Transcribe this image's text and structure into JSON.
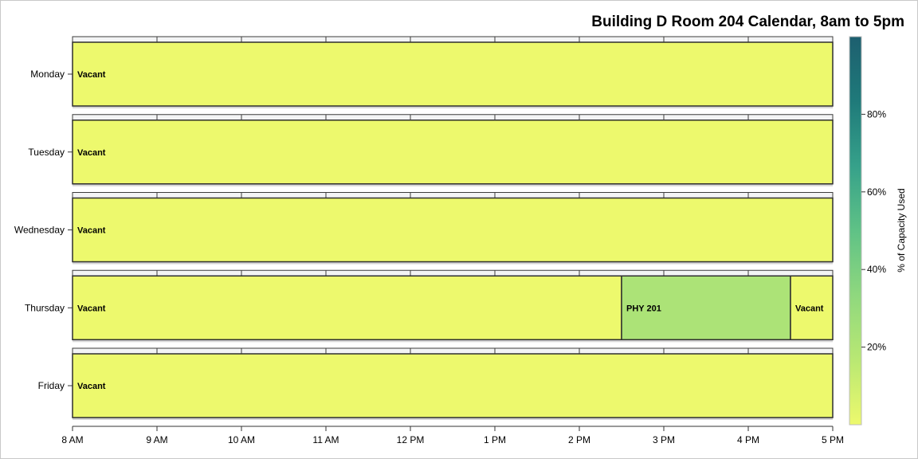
{
  "chart_data": {
    "type": "gantt",
    "title": "Building D Room 204 Calendar, 8am to 5pm",
    "x_unit": "hour of day",
    "xlim": [
      8,
      17
    ],
    "x_ticks": [
      {
        "value": 8,
        "label": "8 AM"
      },
      {
        "value": 9,
        "label": "9 AM"
      },
      {
        "value": 10,
        "label": "10 AM"
      },
      {
        "value": 11,
        "label": "11 AM"
      },
      {
        "value": 12,
        "label": "12 PM"
      },
      {
        "value": 13,
        "label": "1 PM"
      },
      {
        "value": 14,
        "label": "2 PM"
      },
      {
        "value": 15,
        "label": "3 PM"
      },
      {
        "value": 16,
        "label": "4 PM"
      },
      {
        "value": 17,
        "label": "5 PM"
      }
    ],
    "days": [
      "Monday",
      "Tuesday",
      "Wednesday",
      "Thursday",
      "Friday"
    ],
    "blocks": [
      {
        "day": "Monday",
        "start": 8,
        "end": 17,
        "label": "Vacant",
        "capacity_pct": 0
      },
      {
        "day": "Tuesday",
        "start": 8,
        "end": 17,
        "label": "Vacant",
        "capacity_pct": 0
      },
      {
        "day": "Wednesday",
        "start": 8,
        "end": 17,
        "label": "Vacant",
        "capacity_pct": 0
      },
      {
        "day": "Thursday",
        "start": 8,
        "end": 14.5,
        "label": "Vacant",
        "capacity_pct": 0
      },
      {
        "day": "Thursday",
        "start": 14.5,
        "end": 16.5,
        "label": "PHY 201",
        "capacity_pct": 22
      },
      {
        "day": "Thursday",
        "start": 16.5,
        "end": 17,
        "label": "Vacant",
        "capacity_pct": 0
      },
      {
        "day": "Friday",
        "start": 8,
        "end": 17,
        "label": "Vacant",
        "capacity_pct": 0
      }
    ],
    "colorbar": {
      "title": "% of Capacity Used",
      "range": [
        0,
        100
      ],
      "ticks": [
        {
          "value": 20,
          "label": "20%"
        },
        {
          "value": 40,
          "label": "40%"
        },
        {
          "value": 60,
          "label": "60%"
        },
        {
          "value": 80,
          "label": "80%"
        }
      ],
      "colors": [
        "#edf96d",
        "#b9e873",
        "#8fd87e",
        "#5fc286",
        "#36a18a",
        "#1f7a7a",
        "#1d5f6f"
      ]
    },
    "grid": true,
    "legend": "right"
  }
}
